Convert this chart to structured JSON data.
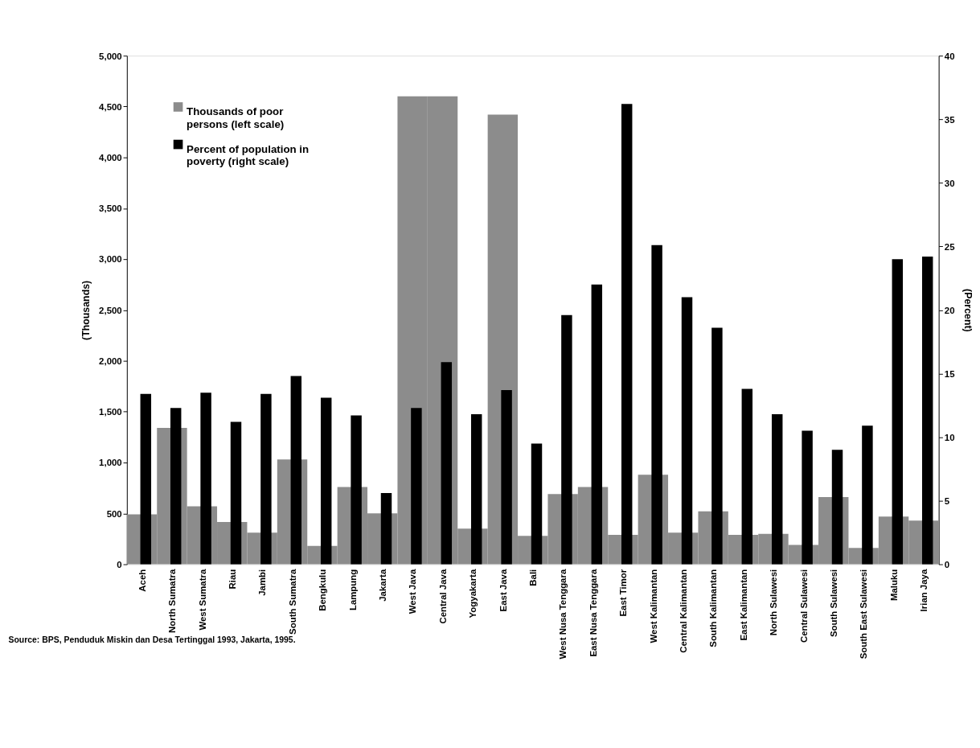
{
  "chart_data": {
    "type": "bar",
    "ylabel": "(Thousands)",
    "y2label": "(Percent)",
    "categories": [
      "Aceh",
      "North Sumatra",
      "West Sumatra",
      "Riau",
      "Jambi",
      "South Sumatra",
      "Bengkulu",
      "Lampung",
      "Jakarta",
      "West Java",
      "Central Java",
      "Yogyakarta",
      "East Java",
      "Bali",
      "West Nusa Tenggara",
      "East Nusa Tenggara",
      "East Timor",
      "West Kalimantan",
      "Central Kalimantan",
      "South Kalimantan",
      "East Kalimantan",
      "North Sulawesi",
      "Central Sulawesi",
      "South Sulawesi",
      "South East Sulawesi",
      "Maluku",
      "Irian Jaya"
    ],
    "series": [
      {
        "name": "Thousands of poor persons (left scale)",
        "color": "#8c8c8c",
        "values": [
          490,
          1340,
          570,
          415,
          310,
          1030,
          180,
          760,
          500,
          4600,
          4600,
          350,
          4420,
          280,
          690,
          760,
          290,
          880,
          310,
          520,
          290,
          300,
          190,
          660,
          160,
          470,
          430
        ]
      },
      {
        "name": "Percent of population in poverty (right scale)",
        "color": "#000000",
        "axis": "y2",
        "values": [
          13.4,
          12.3,
          13.5,
          11.2,
          13.4,
          14.8,
          13.1,
          11.7,
          5.6,
          12.3,
          15.9,
          11.8,
          13.7,
          9.5,
          19.6,
          22.0,
          36.2,
          25.1,
          21.0,
          18.6,
          13.8,
          11.8,
          10.5,
          9.0,
          10.9,
          24.0,
          24.2
        ]
      }
    ],
    "ylim": [
      0,
      5000
    ],
    "yticks": [
      0,
      500,
      {
        "value": 1000,
        "label": "1,000"
      },
      {
        "value": 1500,
        "label": "1,500"
      },
      {
        "value": 2000,
        "label": "2,000"
      },
      {
        "value": 2500,
        "label": "2,500"
      },
      {
        "value": 3000,
        "label": "3,000"
      },
      {
        "value": 3500,
        "label": "3,500"
      },
      {
        "value": 4000,
        "label": "4,000"
      },
      {
        "value": 4500,
        "label": "4,500"
      },
      {
        "value": 5000,
        "label": "5,000"
      }
    ],
    "y2lim": [
      0,
      40
    ],
    "y2ticks": [
      0,
      5,
      10,
      15,
      20,
      25,
      30,
      35,
      40
    ],
    "legend": "top left",
    "grid": false,
    "annotations": [
      "Source:  BPS, Penduduk Miskin dan Desa Tertinggal 1993, Jakarta, 1995."
    ]
  }
}
